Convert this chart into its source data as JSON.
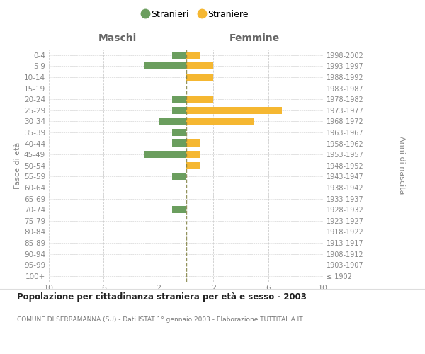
{
  "age_groups": [
    "100+",
    "95-99",
    "90-94",
    "85-89",
    "80-84",
    "75-79",
    "70-74",
    "65-69",
    "60-64",
    "55-59",
    "50-54",
    "45-49",
    "40-44",
    "35-39",
    "30-34",
    "25-29",
    "20-24",
    "15-19",
    "10-14",
    "5-9",
    "0-4"
  ],
  "birth_years": [
    "≤ 1902",
    "1903-1907",
    "1908-1912",
    "1913-1917",
    "1918-1922",
    "1923-1927",
    "1928-1932",
    "1933-1937",
    "1938-1942",
    "1943-1947",
    "1948-1952",
    "1953-1957",
    "1958-1962",
    "1963-1967",
    "1968-1972",
    "1973-1977",
    "1978-1982",
    "1983-1987",
    "1988-1992",
    "1993-1997",
    "1998-2002"
  ],
  "maschi": [
    0,
    0,
    0,
    0,
    0,
    0,
    1,
    0,
    0,
    1,
    0,
    3,
    1,
    1,
    2,
    1,
    1,
    0,
    0,
    3,
    1
  ],
  "femmine": [
    0,
    0,
    0,
    0,
    0,
    0,
    0,
    0,
    0,
    0,
    1,
    1,
    1,
    0,
    5,
    7,
    2,
    0,
    2,
    2,
    1
  ],
  "color_maschi": "#6b9e5e",
  "color_femmine": "#f5b731",
  "xlim": 10,
  "xlabel_left": "Maschi",
  "xlabel_right": "Femmine",
  "ylabel_left": "Fasce di età",
  "ylabel_right": "Anni di nascita",
  "title": "Popolazione per cittadinanza straniera per età e sesso - 2003",
  "subtitle": "COMUNE DI SERRAMANNA (SU) - Dati ISTAT 1° gennaio 2003 - Elaborazione TUTTITALIA.IT",
  "legend_stranieri": "Stranieri",
  "legend_straniere": "Straniere",
  "center_line_color": "#808040",
  "grid_color": "#cccccc",
  "bg_color": "#ffffff",
  "text_color": "#888888",
  "header_color": "#666666"
}
